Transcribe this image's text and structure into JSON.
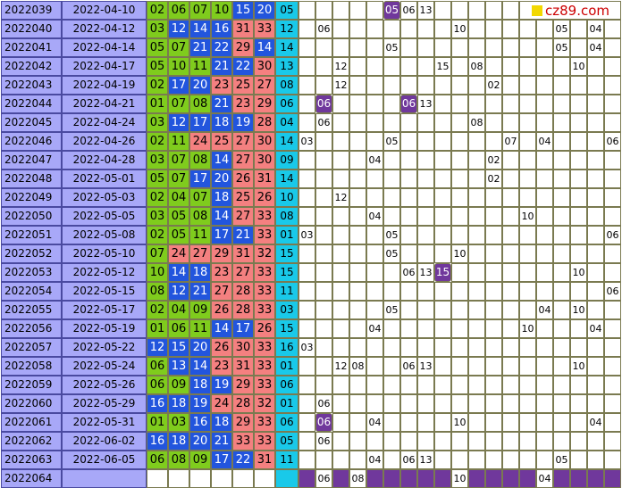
{
  "logo": {
    "text": "cz89.com",
    "square_color": "#f2d800"
  },
  "colors": {
    "green": "#7fcc1d",
    "blue": "#2255dd",
    "pink": "#f48080",
    "cyan": "#19c9e9",
    "purple": "#70389c",
    "issue_bg": "#a8a8f8"
  },
  "rows": [
    {
      "issue": "2022039",
      "date": "2022-04-10",
      "reds": [
        "02",
        "06",
        "07",
        "10",
        "15",
        "20"
      ],
      "blue": "05",
      "dist": [
        {
          "col": 5,
          "val": "05",
          "mark": true
        },
        {
          "col": 6,
          "val": "06"
        },
        {
          "col": 7,
          "val": "13"
        }
      ]
    },
    {
      "issue": "2022040",
      "date": "2022-04-12",
      "reds": [
        "03",
        "12",
        "14",
        "16",
        "31",
        "33"
      ],
      "blue": "12",
      "dist": [
        {
          "col": 1,
          "val": "06"
        },
        {
          "col": 9,
          "val": "10"
        },
        {
          "col": 15,
          "val": "05"
        },
        {
          "col": 17,
          "val": "04"
        }
      ]
    },
    {
      "issue": "2022041",
      "date": "2022-04-14",
      "reds": [
        "05",
        "07",
        "21",
        "22",
        "29",
        "14"
      ],
      "blue": "14",
      "dist": [
        {
          "col": 5,
          "val": "05"
        },
        {
          "col": 15,
          "val": "05"
        },
        {
          "col": 17,
          "val": "04"
        }
      ]
    },
    {
      "issue": "2022042",
      "date": "2022-04-17",
      "reds": [
        "05",
        "10",
        "11",
        "21",
        "22",
        "30"
      ],
      "blue": "13",
      "dist": [
        {
          "col": 2,
          "val": "12"
        },
        {
          "col": 8,
          "val": "15"
        },
        {
          "col": 10,
          "val": "08"
        },
        {
          "col": 16,
          "val": "10"
        }
      ]
    },
    {
      "issue": "2022043",
      "date": "2022-04-19",
      "reds": [
        "02",
        "17",
        "20",
        "23",
        "25",
        "27"
      ],
      "blue": "08",
      "dist": [
        {
          "col": 2,
          "val": "12"
        },
        {
          "col": 11,
          "val": "02"
        }
      ]
    },
    {
      "issue": "2022044",
      "date": "2022-04-21",
      "reds": [
        "01",
        "07",
        "08",
        "21",
        "23",
        "29"
      ],
      "blue": "06",
      "dist": [
        {
          "col": 1,
          "val": "06",
          "mark": true
        },
        {
          "col": 6,
          "val": "06",
          "mark": true
        },
        {
          "col": 7,
          "val": "13"
        }
      ]
    },
    {
      "issue": "2022045",
      "date": "2022-04-24",
      "reds": [
        "03",
        "12",
        "17",
        "18",
        "19",
        "28"
      ],
      "blue": "04",
      "dist": [
        {
          "col": 1,
          "val": "06"
        },
        {
          "col": 10,
          "val": "08"
        }
      ]
    },
    {
      "issue": "2022046",
      "date": "2022-04-26",
      "reds": [
        "02",
        "11",
        "24",
        "25",
        "27",
        "30"
      ],
      "blue": "14",
      "dist": [
        {
          "col": 0,
          "val": "03"
        },
        {
          "col": 5,
          "val": "05"
        },
        {
          "col": 12,
          "val": "07"
        },
        {
          "col": 14,
          "val": "04"
        },
        {
          "col": 18,
          "val": "06"
        }
      ]
    },
    {
      "issue": "2022047",
      "date": "2022-04-28",
      "reds": [
        "03",
        "07",
        "08",
        "14",
        "27",
        "30"
      ],
      "blue": "09",
      "dist": [
        {
          "col": 4,
          "val": "04"
        },
        {
          "col": 11,
          "val": "02"
        }
      ]
    },
    {
      "issue": "2022048",
      "date": "2022-05-01",
      "reds": [
        "05",
        "07",
        "17",
        "20",
        "26",
        "31"
      ],
      "blue": "14",
      "dist": [
        {
          "col": 11,
          "val": "02"
        }
      ]
    },
    {
      "issue": "2022049",
      "date": "2022-05-03",
      "reds": [
        "02",
        "04",
        "07",
        "18",
        "25",
        "26"
      ],
      "blue": "10",
      "dist": [
        {
          "col": 2,
          "val": "12"
        }
      ]
    },
    {
      "issue": "2022050",
      "date": "2022-05-05",
      "reds": [
        "03",
        "05",
        "08",
        "14",
        "27",
        "33"
      ],
      "blue": "08",
      "dist": [
        {
          "col": 4,
          "val": "04"
        },
        {
          "col": 13,
          "val": "10"
        }
      ]
    },
    {
      "issue": "2022051",
      "date": "2022-05-08",
      "reds": [
        "02",
        "05",
        "11",
        "17",
        "21",
        "33"
      ],
      "blue": "01",
      "dist": [
        {
          "col": 0,
          "val": "03"
        },
        {
          "col": 5,
          "val": "05"
        },
        {
          "col": 18,
          "val": "06"
        }
      ]
    },
    {
      "issue": "2022052",
      "date": "2022-05-10",
      "reds": [
        "07",
        "24",
        "27",
        "29",
        "31",
        "32"
      ],
      "blue": "15",
      "dist": [
        {
          "col": 5,
          "val": "05"
        },
        {
          "col": 9,
          "val": "10"
        }
      ]
    },
    {
      "issue": "2022053",
      "date": "2022-05-12",
      "reds": [
        "10",
        "14",
        "18",
        "23",
        "27",
        "33"
      ],
      "blue": "15",
      "dist": [
        {
          "col": 6,
          "val": "06"
        },
        {
          "col": 7,
          "val": "13"
        },
        {
          "col": 8,
          "val": "15",
          "mark": true
        },
        {
          "col": 16,
          "val": "10"
        }
      ]
    },
    {
      "issue": "2022054",
      "date": "2022-05-15",
      "reds": [
        "08",
        "12",
        "21",
        "27",
        "28",
        "33"
      ],
      "blue": "11",
      "dist": [
        {
          "col": 18,
          "val": "06"
        }
      ]
    },
    {
      "issue": "2022055",
      "date": "2022-05-17",
      "reds": [
        "02",
        "04",
        "09",
        "26",
        "28",
        "33"
      ],
      "blue": "03",
      "dist": [
        {
          "col": 5,
          "val": "05"
        },
        {
          "col": 14,
          "val": "04"
        },
        {
          "col": 16,
          "val": "10"
        }
      ]
    },
    {
      "issue": "2022056",
      "date": "2022-05-19",
      "reds": [
        "01",
        "06",
        "11",
        "14",
        "17",
        "26"
      ],
      "blue": "15",
      "dist": [
        {
          "col": 4,
          "val": "04"
        },
        {
          "col": 13,
          "val": "10"
        },
        {
          "col": 17,
          "val": "04"
        }
      ]
    },
    {
      "issue": "2022057",
      "date": "2022-05-22",
      "reds": [
        "12",
        "15",
        "20",
        "26",
        "30",
        "33"
      ],
      "blue": "16",
      "dist": [
        {
          "col": 0,
          "val": "03"
        }
      ]
    },
    {
      "issue": "2022058",
      "date": "2022-05-24",
      "reds": [
        "06",
        "13",
        "14",
        "23",
        "31",
        "33"
      ],
      "blue": "01",
      "dist": [
        {
          "col": 2,
          "val": "12"
        },
        {
          "col": 3,
          "val": "08"
        },
        {
          "col": 6,
          "val": "06"
        },
        {
          "col": 7,
          "val": "13"
        },
        {
          "col": 16,
          "val": "10"
        }
      ]
    },
    {
      "issue": "2022059",
      "date": "2022-05-26",
      "reds": [
        "06",
        "09",
        "18",
        "19",
        "29",
        "33"
      ],
      "blue": "06",
      "dist": []
    },
    {
      "issue": "2022060",
      "date": "2022-05-29",
      "reds": [
        "16",
        "18",
        "19",
        "24",
        "28",
        "32"
      ],
      "blue": "01",
      "dist": [
        {
          "col": 1,
          "val": "06"
        }
      ]
    },
    {
      "issue": "2022061",
      "date": "2022-05-31",
      "reds": [
        "01",
        "03",
        "16",
        "18",
        "29",
        "33"
      ],
      "blue": "06",
      "dist": [
        {
          "col": 1,
          "val": "06",
          "mark": true
        },
        {
          "col": 4,
          "val": "04"
        },
        {
          "col": 9,
          "val": "10"
        },
        {
          "col": 17,
          "val": "04"
        }
      ]
    },
    {
      "issue": "2022062",
      "date": "2022-06-02",
      "reds": [
        "16",
        "18",
        "20",
        "21",
        "33",
        "33"
      ],
      "blue": "05",
      "dist": [
        {
          "col": 1,
          "val": "06"
        }
      ]
    },
    {
      "issue": "2022063",
      "date": "2022-06-05",
      "reds": [
        "06",
        "08",
        "09",
        "17",
        "22",
        "31"
      ],
      "blue": "11",
      "dist": [
        {
          "col": 4,
          "val": "04"
        },
        {
          "col": 6,
          "val": "06"
        },
        {
          "col": 7,
          "val": "13"
        },
        {
          "col": 15,
          "val": "05"
        }
      ]
    }
  ],
  "last_row": {
    "issue": "2022064",
    "date": "",
    "dist": [
      {
        "col": 1,
        "val": "06"
      },
      {
        "col": 3,
        "val": "08"
      },
      {
        "col": 9,
        "val": "10"
      },
      {
        "col": 14,
        "val": "04"
      }
    ],
    "purple_cols": [
      0,
      2,
      4,
      5,
      6,
      7,
      8,
      10,
      11,
      12,
      13,
      15,
      16,
      17,
      18
    ]
  }
}
